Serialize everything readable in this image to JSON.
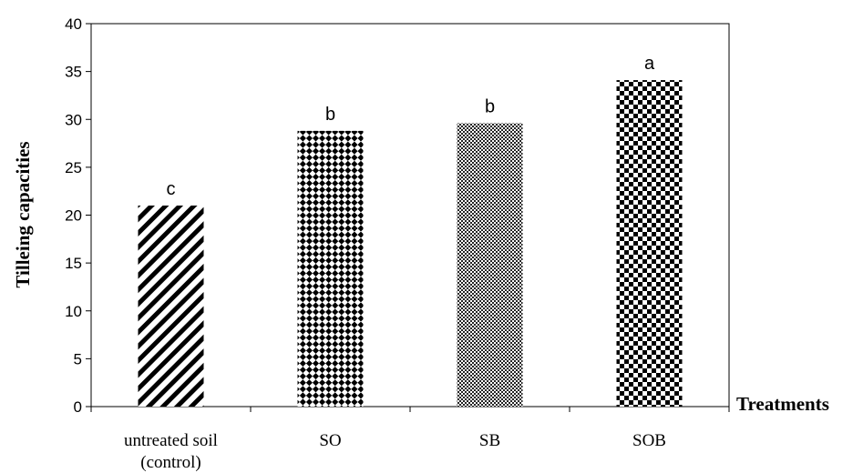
{
  "chart_data": {
    "type": "bar",
    "title": "",
    "xlabel": "Treatments",
    "ylabel": "Tilleing capacities",
    "ylim": [
      0,
      40
    ],
    "yticks": [
      0,
      5,
      10,
      15,
      20,
      25,
      30,
      35,
      40
    ],
    "grid": false,
    "legend": "none",
    "categories": [
      [
        "untreated soil",
        "(control)"
      ],
      [
        "SO"
      ],
      [
        "SB"
      ],
      [
        "SOB"
      ]
    ],
    "values": [
      21,
      28.8,
      29.6,
      34.1
    ],
    "significance_letters": [
      "c",
      "b",
      "b",
      "a"
    ],
    "bar_patterns": [
      "diagonal-stripes",
      "diamond-checker",
      "fine-checker",
      "checkerboard"
    ],
    "colors": {
      "bar": "#000000",
      "background": "#ffffff",
      "axis": "#000000"
    }
  }
}
